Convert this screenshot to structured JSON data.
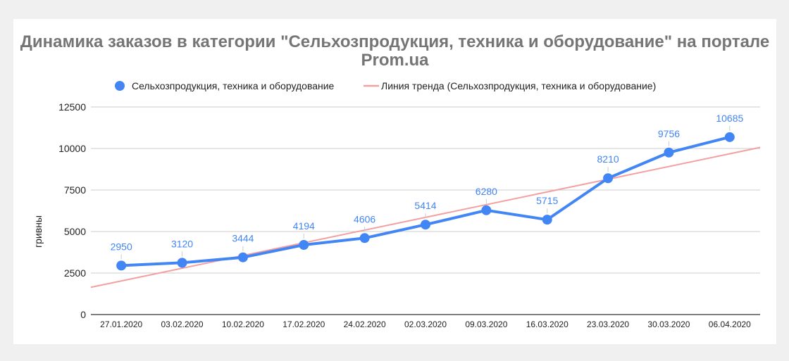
{
  "chart_data": {
    "type": "line",
    "title": "Динамика заказов в категории \"Сельхозпродукция, техника и оборудование\" на портале Prom.ua",
    "xlabel": "",
    "ylabel": "гривны",
    "categories": [
      "27.01.2020",
      "03.02.2020",
      "10.02.2020",
      "17.02.2020",
      "24.02.2020",
      "02.03.2020",
      "09.03.2020",
      "16.03.2020",
      "23.03.2020",
      "30.03.2020",
      "06.04.2020"
    ],
    "series": [
      {
        "name": "Сельхозпродукция, техника и оборудование",
        "values": [
          2950,
          3120,
          3444,
          4194,
          4606,
          5414,
          6280,
          5715,
          8210,
          9756,
          10685
        ],
        "color": "#4285f4",
        "data_labels": true
      }
    ],
    "trendline": {
      "name": "Линия тренда (Сельхозпродукция, техника и оборудование)",
      "type": "linear",
      "color": "#f4a0a0"
    },
    "ylim": [
      0,
      12500
    ],
    "yticks": [
      0,
      2500,
      5000,
      7500,
      10000,
      12500
    ],
    "ytick_labels": [
      "0",
      "2500",
      "5000",
      "7500",
      "10000",
      "12500"
    ],
    "grid": true,
    "legend": "top"
  },
  "colors": {
    "background": "#f0f0f0",
    "card": "#ffffff",
    "title": "#757575",
    "gridline": "#cccccc",
    "axis": "#333333",
    "data_label": "#4285f4"
  }
}
